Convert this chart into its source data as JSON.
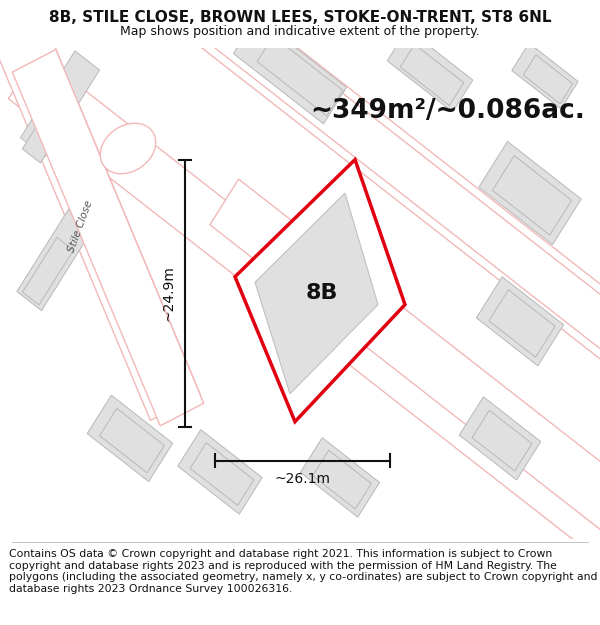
{
  "title": "8B, STILE CLOSE, BROWN LEES, STOKE-ON-TRENT, ST8 6NL",
  "subtitle": "Map shows position and indicative extent of the property.",
  "area_text": "~349m²/~0.086ac.",
  "width_label": "~26.1m",
  "height_label": "~24.9m",
  "plot_label": "8B",
  "street_label": "Stile Close",
  "footer": "Contains OS data © Crown copyright and database right 2021. This information is subject to Crown copyright and database rights 2023 and is reproduced with the permission of HM Land Registry. The polygons (including the associated geometry, namely x, y co-ordinates) are subject to Crown copyright and database rights 2023 Ordnance Survey 100026316.",
  "bg_color": "#f7f7f7",
  "building_fill": "#e0e0e0",
  "building_edge": "#b8b8b8",
  "road_outline": "#f2b8b8",
  "road_fill": "#ffffff",
  "plot_edge": "#e00010",
  "plot_fill": "#ffffff",
  "inner_fill": "#e0e0e0",
  "inner_edge": "#c0c0c0",
  "black": "#111111",
  "title_fontsize": 11,
  "subtitle_fontsize": 9,
  "area_fontsize": 19,
  "footer_fontsize": 7.8
}
